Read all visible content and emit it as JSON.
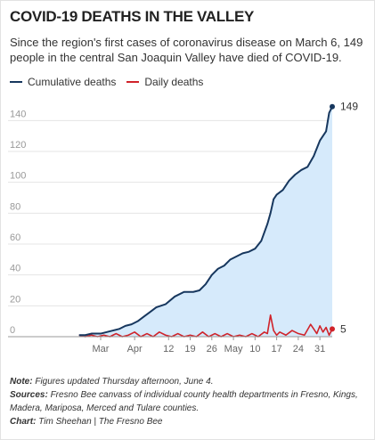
{
  "header": {
    "title": "COVID-19 DEATHS IN THE VALLEY",
    "subtitle": "Since the region's first cases of coronavirus disease on March 6, 149 people in the central San Joaquin Valley have died of COVID-19."
  },
  "legend": [
    {
      "label": "Cumulative deaths",
      "color": "#17375e"
    },
    {
      "label": "Daily deaths",
      "color": "#d0232a"
    }
  ],
  "notes": {
    "note_label": "Note:",
    "note_text": "Figures updated Thursday afternoon, June 4.",
    "sources_label": "Sources:",
    "sources_text": "Fresno Bee canvass of individual county health departments in Fresno, Kings, Madera, Mariposa, Merced and Tulare counties.",
    "chart_label": "Chart:",
    "chart_text": "Tim Sheehan | The Fresno Bee"
  },
  "chart_data": {
    "type": "line",
    "x_start": "2020-03-06",
    "x_end": "2020-06-04",
    "xlim": [
      "2020-03-06",
      "2020-06-04"
    ],
    "ylim": [
      0,
      150
    ],
    "grid": true,
    "legend_position": "top-left",
    "y_ticks": [
      0,
      20,
      40,
      60,
      80,
      100,
      120,
      140
    ],
    "x_ticks": [
      {
        "label": "Mar",
        "date": "2020-03-21"
      },
      {
        "label": "Apr",
        "date": "2020-04-01"
      },
      {
        "label": "12",
        "date": "2020-04-12"
      },
      {
        "label": "19",
        "date": "2020-04-19"
      },
      {
        "label": "26",
        "date": "2020-04-26"
      },
      {
        "label": "May",
        "date": "2020-05-03"
      },
      {
        "label": "10",
        "date": "2020-05-10"
      },
      {
        "label": "17",
        "date": "2020-05-17"
      },
      {
        "label": "24",
        "date": "2020-05-24"
      },
      {
        "label": "31",
        "date": "2020-05-31"
      }
    ],
    "series": [
      {
        "name": "Cumulative deaths",
        "color": "#17375e",
        "fill": "#d6eafb",
        "end_label": "149",
        "points": [
          [
            "2020-03-14",
            1
          ],
          [
            "2020-03-16",
            1
          ],
          [
            "2020-03-18",
            2
          ],
          [
            "2020-03-21",
            2
          ],
          [
            "2020-03-23",
            3
          ],
          [
            "2020-03-25",
            4
          ],
          [
            "2020-03-27",
            5
          ],
          [
            "2020-03-29",
            7
          ],
          [
            "2020-03-31",
            8
          ],
          [
            "2020-04-02",
            10
          ],
          [
            "2020-04-04",
            13
          ],
          [
            "2020-04-06",
            16
          ],
          [
            "2020-04-08",
            19
          ],
          [
            "2020-04-11",
            21
          ],
          [
            "2020-04-14",
            26
          ],
          [
            "2020-04-17",
            29
          ],
          [
            "2020-04-20",
            29
          ],
          [
            "2020-04-22",
            30
          ],
          [
            "2020-04-24",
            34
          ],
          [
            "2020-04-26",
            40
          ],
          [
            "2020-04-28",
            44
          ],
          [
            "2020-04-30",
            46
          ],
          [
            "2020-05-02",
            50
          ],
          [
            "2020-05-04",
            52
          ],
          [
            "2020-05-06",
            54
          ],
          [
            "2020-05-08",
            55
          ],
          [
            "2020-05-10",
            57
          ],
          [
            "2020-05-12",
            62
          ],
          [
            "2020-05-14",
            73
          ],
          [
            "2020-05-15",
            80
          ],
          [
            "2020-05-16",
            89
          ],
          [
            "2020-05-17",
            92
          ],
          [
            "2020-05-19",
            95
          ],
          [
            "2020-05-21",
            101
          ],
          [
            "2020-05-23",
            105
          ],
          [
            "2020-05-25",
            108
          ],
          [
            "2020-05-27",
            110
          ],
          [
            "2020-05-29",
            117
          ],
          [
            "2020-05-31",
            127
          ],
          [
            "2020-06-02",
            133
          ],
          [
            "2020-06-03",
            145
          ],
          [
            "2020-06-04",
            149
          ]
        ]
      },
      {
        "name": "Daily deaths",
        "color": "#d0232a",
        "end_label": "5",
        "points": [
          [
            "2020-03-14",
            1
          ],
          [
            "2020-03-16",
            0
          ],
          [
            "2020-03-18",
            1
          ],
          [
            "2020-03-20",
            0
          ],
          [
            "2020-03-22",
            1
          ],
          [
            "2020-03-24",
            0
          ],
          [
            "2020-03-26",
            2
          ],
          [
            "2020-03-28",
            0
          ],
          [
            "2020-03-30",
            1
          ],
          [
            "2020-04-01",
            3
          ],
          [
            "2020-04-03",
            0
          ],
          [
            "2020-04-05",
            2
          ],
          [
            "2020-04-07",
            0
          ],
          [
            "2020-04-09",
            3
          ],
          [
            "2020-04-11",
            1
          ],
          [
            "2020-04-13",
            0
          ],
          [
            "2020-04-15",
            2
          ],
          [
            "2020-04-17",
            0
          ],
          [
            "2020-04-19",
            1
          ],
          [
            "2020-04-21",
            0
          ],
          [
            "2020-04-23",
            3
          ],
          [
            "2020-04-25",
            0
          ],
          [
            "2020-04-27",
            2
          ],
          [
            "2020-04-29",
            0
          ],
          [
            "2020-05-01",
            2
          ],
          [
            "2020-05-03",
            0
          ],
          [
            "2020-05-05",
            1
          ],
          [
            "2020-05-07",
            0
          ],
          [
            "2020-05-09",
            2
          ],
          [
            "2020-05-11",
            0
          ],
          [
            "2020-05-13",
            3
          ],
          [
            "2020-05-14",
            2
          ],
          [
            "2020-05-15",
            14
          ],
          [
            "2020-05-16",
            4
          ],
          [
            "2020-05-17",
            1
          ],
          [
            "2020-05-18",
            3
          ],
          [
            "2020-05-20",
            1
          ],
          [
            "2020-05-22",
            4
          ],
          [
            "2020-05-24",
            2
          ],
          [
            "2020-05-26",
            1
          ],
          [
            "2020-05-28",
            8
          ],
          [
            "2020-05-29",
            5
          ],
          [
            "2020-05-30",
            2
          ],
          [
            "2020-05-31",
            7
          ],
          [
            "2020-06-01",
            3
          ],
          [
            "2020-06-02",
            6
          ],
          [
            "2020-06-03",
            1
          ],
          [
            "2020-06-04",
            5
          ]
        ]
      }
    ]
  }
}
